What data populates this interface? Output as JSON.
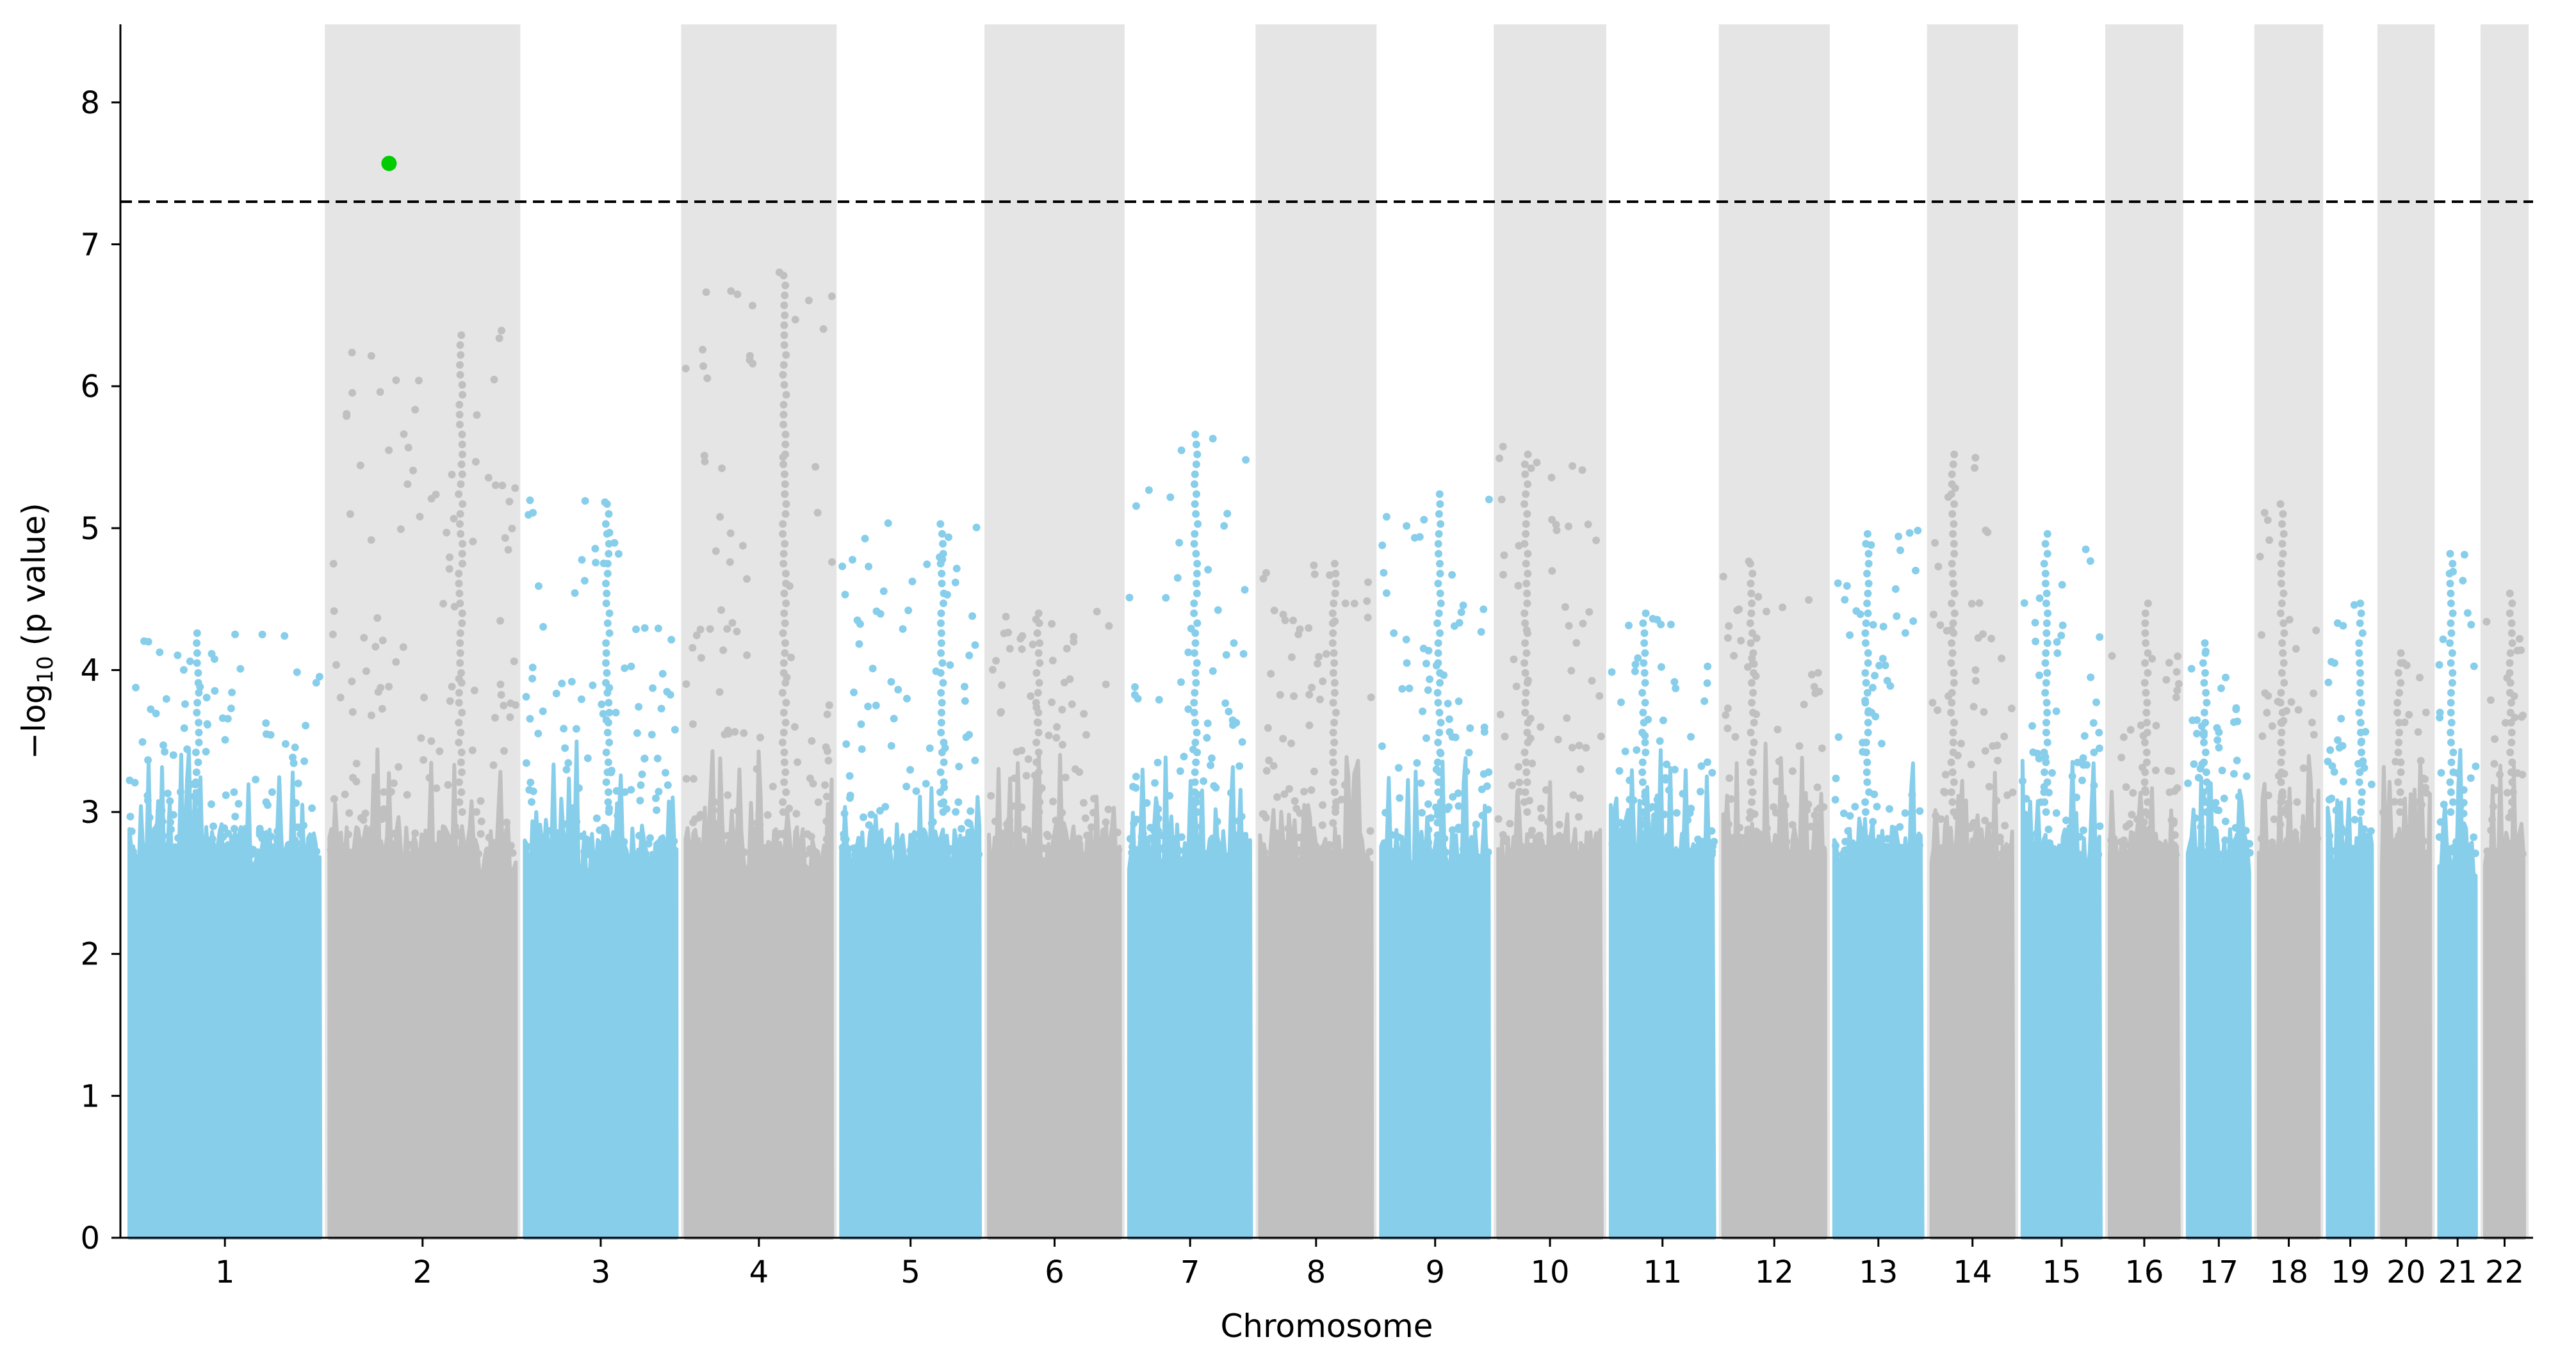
{
  "chart_data": {
    "type": "scatter",
    "subtype": "manhattan",
    "title": "",
    "xlabel": "Chromosome",
    "ylabel_prefix": "−log",
    "ylabel_subscript": "10",
    "ylabel_suffix": " (p value)",
    "ylim": [
      0,
      8.55
    ],
    "yticks": [
      0,
      1,
      2,
      3,
      4,
      5,
      6,
      7,
      8
    ],
    "significance_threshold": 7.3,
    "shaded_band_color": "#e5e5e5",
    "colors": {
      "odd": "#87ceeb",
      "even": "#c0c0c0",
      "significant": "#00cc00",
      "threshold_line": "#000000"
    },
    "chromosomes": [
      {
        "label": "1",
        "length": 249,
        "peak": 4.3
      },
      {
        "label": "2",
        "length": 243,
        "peak": 6.4
      },
      {
        "label": "3",
        "length": 198,
        "peak": 5.2
      },
      {
        "label": "4",
        "length": 191,
        "peak": 6.85
      },
      {
        "label": "5",
        "length": 181,
        "peak": 5.1
      },
      {
        "label": "6",
        "length": 171,
        "peak": 4.45
      },
      {
        "label": "7",
        "length": 159,
        "peak": 5.72
      },
      {
        "label": "8",
        "length": 146,
        "peak": 4.8
      },
      {
        "label": "9",
        "length": 141,
        "peak": 5.3
      },
      {
        "label": "10",
        "length": 135,
        "peak": 5.58
      },
      {
        "label": "11",
        "length": 135,
        "peak": 4.4
      },
      {
        "label": "12",
        "length": 133,
        "peak": 4.8
      },
      {
        "label": "13",
        "length": 115,
        "peak": 5.02
      },
      {
        "label": "14",
        "length": 107,
        "peak": 5.58
      },
      {
        "label": "15",
        "length": 102,
        "peak": 4.98
      },
      {
        "label": "16",
        "length": 90,
        "peak": 4.5
      },
      {
        "label": "17",
        "length": 81,
        "peak": 4.2
      },
      {
        "label": "18",
        "length": 78,
        "peak": 5.2
      },
      {
        "label": "19",
        "length": 59,
        "peak": 4.5
      },
      {
        "label": "20",
        "length": 63,
        "peak": 4.15
      },
      {
        "label": "21",
        "length": 48,
        "peak": 4.85
      },
      {
        "label": "22",
        "length": 51,
        "peak": 4.6
      }
    ],
    "significant_points": [
      {
        "chromosome": "2",
        "position_fraction": 0.32,
        "value": 7.57
      }
    ]
  }
}
